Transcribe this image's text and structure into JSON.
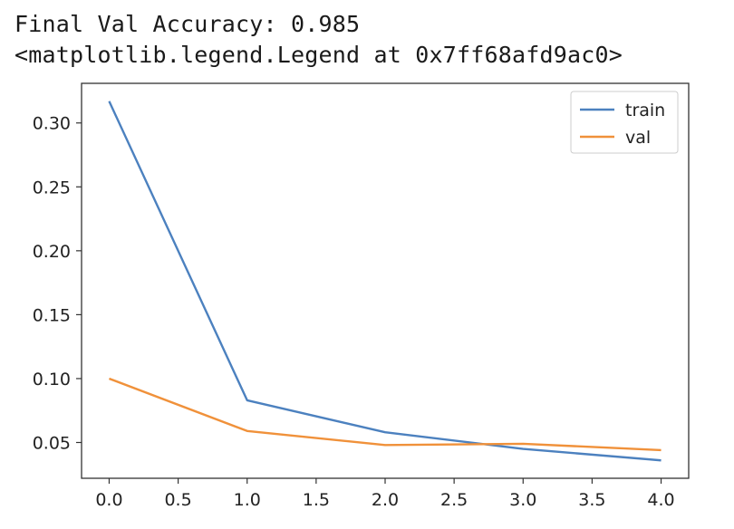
{
  "output": {
    "line1": "Final Val Accuracy: 0.985",
    "line2": "<matplotlib.legend.Legend at 0x7ff68afd9ac0>"
  },
  "chart_data": {
    "type": "line",
    "title": "",
    "xlabel": "",
    "ylabel": "",
    "x": [
      0,
      1,
      2,
      3,
      4
    ],
    "series": [
      {
        "name": "train",
        "color": "#4c81bf",
        "values": [
          0.317,
          0.083,
          0.058,
          0.045,
          0.036
        ]
      },
      {
        "name": "val",
        "color": "#f0913a",
        "values": [
          0.1,
          0.059,
          0.048,
          0.049,
          0.044
        ]
      }
    ],
    "xlim": [
      -0.2,
      4.2
    ],
    "ylim": [
      0.022,
      0.331
    ],
    "xticks": [
      0.0,
      0.5,
      1.0,
      1.5,
      2.0,
      2.5,
      3.0,
      3.5,
      4.0
    ],
    "yticks": [
      0.05,
      0.1,
      0.15,
      0.2,
      0.25,
      0.3
    ],
    "grid": false,
    "legend_position": "top-right"
  }
}
